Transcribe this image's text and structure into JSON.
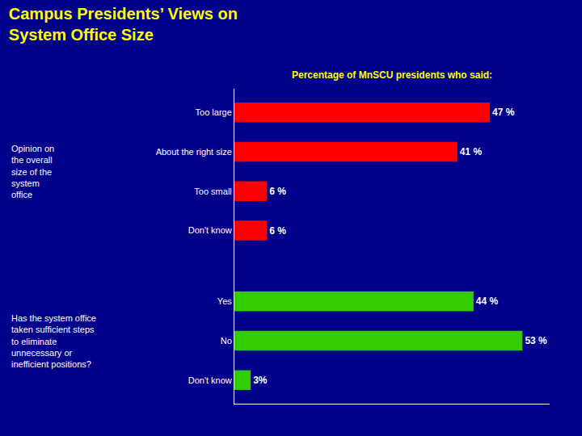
{
  "chart_data": {
    "type": "bar",
    "orientation": "horizontal",
    "title": "Campus Presidents’ Views on\nSystem Office Size",
    "categories": [
      "Too large",
      "About the right size",
      "Too small",
      "Don't know",
      "Yes",
      "No",
      "Don't know"
    ],
    "values": [
      47,
      41,
      6,
      6,
      44,
      53,
      3
    ],
    "value_labels": [
      "47 %",
      "41 %",
      "6 %",
      "6 %",
      "44 %",
      "53 %",
      "3%"
    ],
    "colors": [
      "#FF0000",
      "#FF0000",
      "#FF0000",
      "#FF0000",
      "#33CC00",
      "#33CC00",
      "#33CC00"
    ],
    "xlim": [
      0,
      58
    ],
    "data_labels": true,
    "tick_labels": "y",
    "grid": false,
    "annotations": [
      "Percentage of MnSCU presidents who said:",
      "Opinion on\nthe overall\nsize of the\nsystem\noffice",
      "Has the system office\ntaken sufficient steps\nto eliminate\nunnecessary or\ninefficient positions?"
    ]
  }
}
